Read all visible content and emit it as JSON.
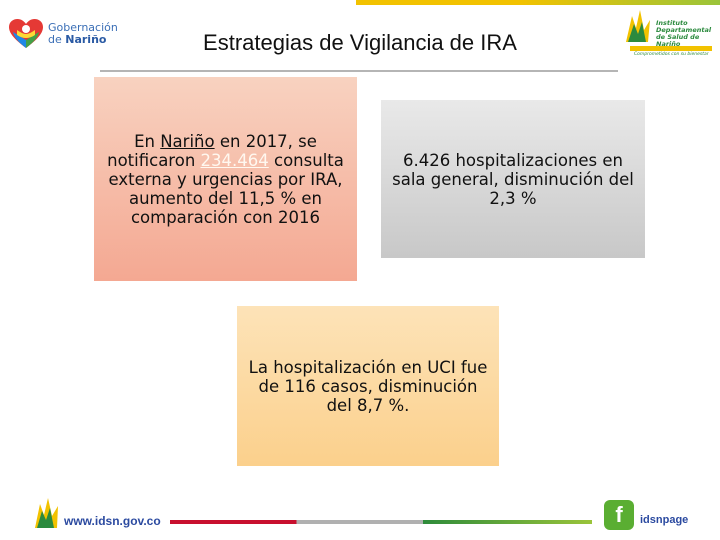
{
  "header": {
    "logo_left": {
      "line1": "Gobernación",
      "line2_prefix": "de ",
      "line2_bold": "Nariño",
      "icon": "heart-logo-icon"
    },
    "title": "Estrategias de Vigilancia de IRA",
    "logo_right": {
      "line1": "Instituto",
      "line2": "Departamental",
      "line3": "de Salud de Nariño",
      "slogan": "Comprometidos con su bienestar",
      "icon": "idsn-logo-icon"
    }
  },
  "boxes": {
    "box1": {
      "part1": "En ",
      "underline1": "Nariño",
      "part2": " en 2017, se notificaron ",
      "highlight": "234.464",
      "part3": " consulta externa y urgencias por IRA, aumento del 11,5 % en comparación con 2016",
      "color": "#f4a892"
    },
    "box2": {
      "text": "6.426 hospitalizaciones en sala general, disminución del 2,3 %",
      "color": "#c8c8c8"
    },
    "box3": {
      "text": "La hospitalización en UCI fue de 116 casos, disminución del 8,7 %.",
      "color": "#fbd08c"
    }
  },
  "footer": {
    "url": "www.idsn.gov.co",
    "facebook_icon": "facebook-icon",
    "facebook_glyph": "f",
    "facebook_page": "idsnpage"
  },
  "colors": {
    "accent_yellow": "#f2c200",
    "accent_green": "#9ac43a",
    "brand_blue": "#2b4aa0",
    "brand_red": "#c8102e"
  }
}
